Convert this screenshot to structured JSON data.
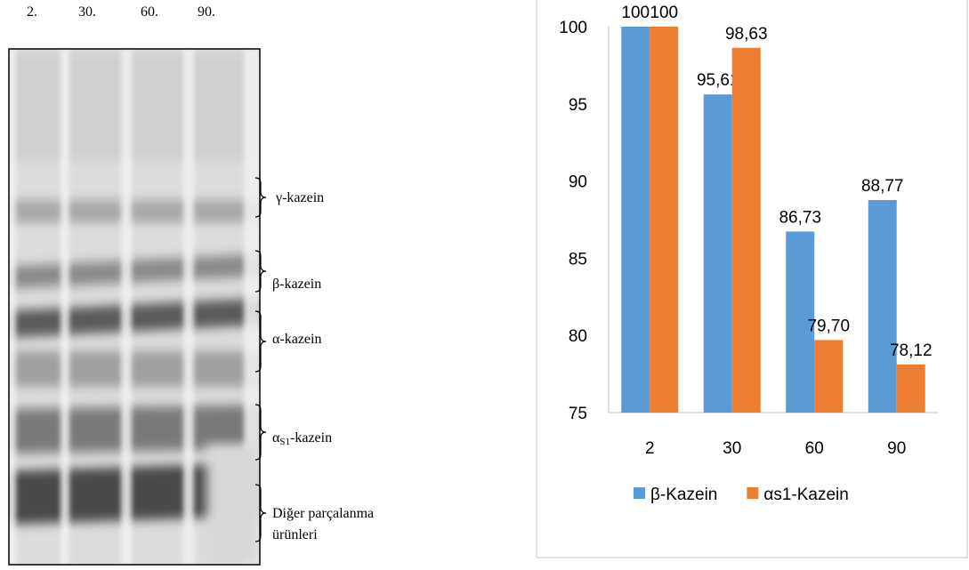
{
  "gel": {
    "lanes": [
      "2.",
      "30.",
      "60.",
      "90."
    ],
    "bands": {
      "gamma": "γ-kazein",
      "beta": "β-kazein",
      "alpha": "α-kazein",
      "alpha_s1": [
        "α",
        "S1",
        "-kazein"
      ],
      "other": [
        "Diğer parçalanma",
        "ürünleri"
      ]
    }
  },
  "chart_data": {
    "type": "bar",
    "categories": [
      "2",
      "30",
      "60",
      "90"
    ],
    "series": [
      {
        "name": "β-Kazein",
        "color": "#5b9bd5",
        "values": [
          100,
          95.61,
          86.73,
          88.77
        ],
        "value_labels": [
          "100",
          "95,61",
          "86,73",
          "88,77"
        ]
      },
      {
        "name": "αs1-Kazein",
        "color": "#ed7d31",
        "values": [
          100,
          98.63,
          79.7,
          78.12
        ],
        "value_labels": [
          "100",
          "98,63",
          "79,70",
          "78,12"
        ]
      }
    ],
    "ylim": [
      75,
      100
    ],
    "yticks": [
      75,
      80,
      85,
      90,
      95,
      100
    ],
    "grid": false,
    "legend": "bottom"
  }
}
